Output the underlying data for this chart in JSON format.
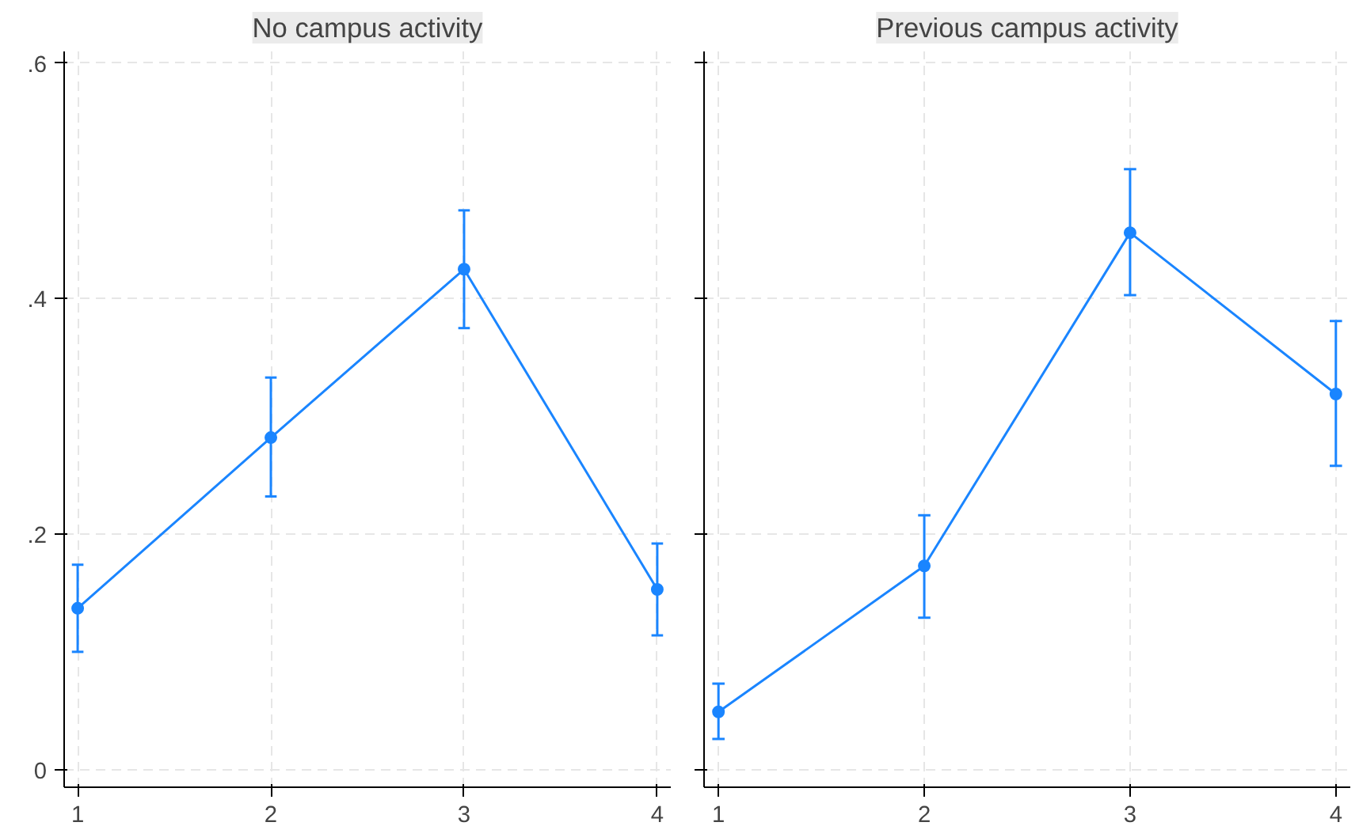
{
  "chart_data": [
    {
      "type": "line",
      "title": "No campus activity",
      "x": [
        1,
        2,
        3,
        4
      ],
      "series": [
        {
          "color": "#1a85ff",
          "values": [
            0.137,
            0.282,
            0.425,
            0.153
          ],
          "errors": [
            [
              0.1,
              0.174
            ],
            [
              0.232,
              0.333
            ],
            [
              0.375,
              0.475
            ],
            [
              0.114,
              0.192
            ]
          ]
        }
      ],
      "xlim": [
        0.93,
        4.07
      ],
      "xticks": [
        1,
        2,
        3,
        4
      ],
      "ylim": [
        -0.015,
        0.61
      ],
      "yticks": [
        {
          "value": 0,
          "label": "0"
        },
        {
          "value": 0.2,
          "label": ".2"
        },
        {
          "value": 0.4,
          "label": ".4"
        },
        {
          "value": 0.6,
          "label": ".6"
        }
      ],
      "grid": true,
      "marker": "circle",
      "line_style": "solid"
    },
    {
      "type": "line",
      "title": "Previous campus activity",
      "x": [
        1,
        2,
        3,
        4
      ],
      "series": [
        {
          "color": "#1a85ff",
          "values": [
            0.049,
            0.173,
            0.456,
            0.319
          ],
          "errors": [
            [
              0.026,
              0.073
            ],
            [
              0.129,
              0.216
            ],
            [
              0.403,
              0.51
            ],
            [
              0.258,
              0.381
            ]
          ]
        }
      ],
      "xlim": [
        0.93,
        4.07
      ],
      "xticks": [
        1,
        2,
        3,
        4
      ],
      "ylim": [
        -0.015,
        0.61
      ],
      "yticks": [
        {
          "value": 0,
          "label": null
        },
        {
          "value": 0.2,
          "label": null
        },
        {
          "value": 0.4,
          "label": null
        },
        {
          "value": 0.6,
          "label": null
        }
      ],
      "grid": true,
      "marker": "circle",
      "line_style": "solid",
      "tick_labels": "x"
    }
  ]
}
